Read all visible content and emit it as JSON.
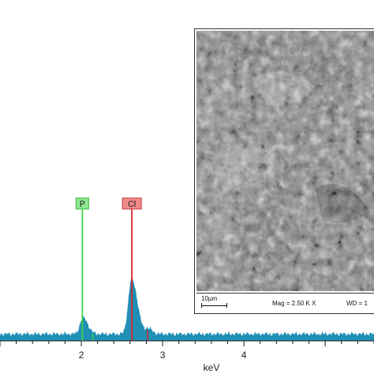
{
  "chart_data": {
    "type": "area",
    "xlabel": "keV",
    "xlim": [
      1.0,
      5.6
    ],
    "ylim": [
      0,
      100
    ],
    "x_ticks": [
      2,
      3,
      4
    ],
    "x_tick_labels": [
      "2",
      "3",
      "4"
    ],
    "grid": false,
    "series_color": "#1f8fb4",
    "baseline": 3.5,
    "peaks": [
      {
        "center": 2.02,
        "height": 9,
        "width": 0.035
      },
      {
        "center": 2.62,
        "height": 30,
        "width": 0.04
      },
      {
        "center": 2.82,
        "height": 3,
        "width": 0.03
      }
    ],
    "element_lines": [
      {
        "label": "P",
        "energy": 2.013,
        "color": "#3fd24a",
        "tag_fill": "#8fe68f",
        "tag_stroke": "#39b93f",
        "line_height": 72
      },
      {
        "label": "Cl",
        "energy": 2.622,
        "color": "#d8252b",
        "tag_fill": "#f08a8a",
        "tag_stroke": "#c73a3a",
        "line_height": 72
      }
    ],
    "minor_lines": [
      {
        "energy": 2.14,
        "color": "#3fd24a",
        "height": 4
      },
      {
        "energy": 2.815,
        "color": "#d8252b",
        "height": 6
      }
    ]
  },
  "sem": {
    "scale_bar": "10µm",
    "magnification": "Mag = 2.50 K X",
    "working_distance": "WD = 1"
  }
}
